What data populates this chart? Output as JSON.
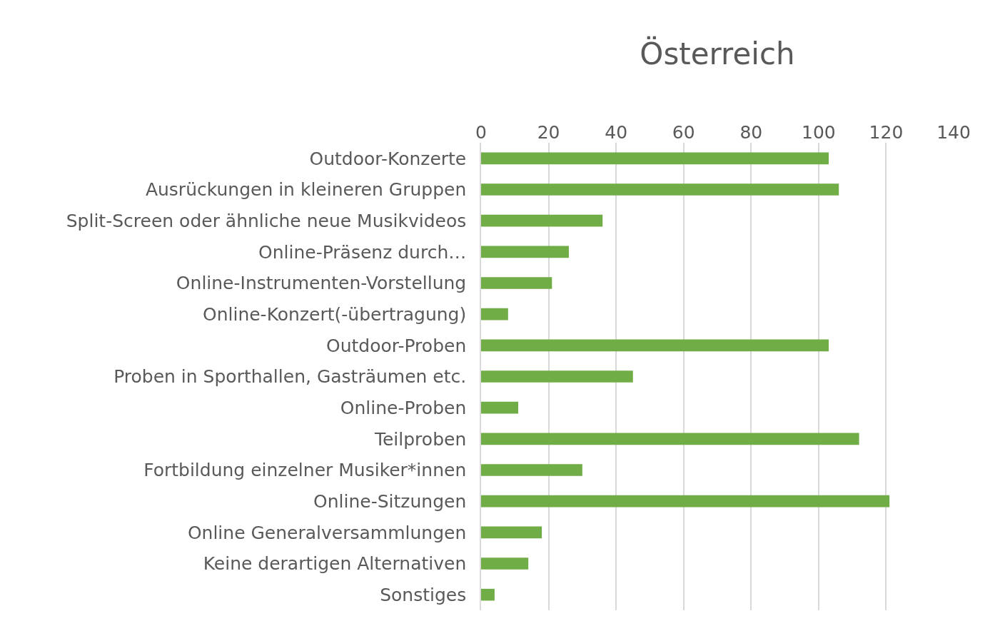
{
  "chart_data": {
    "type": "bar",
    "orientation": "horizontal",
    "title": "Österreich",
    "categories": [
      "Outdoor-Konzerte",
      "Ausrückungen in kleineren Gruppen",
      "Split-Screen oder ähnliche neue Musikvideos",
      "Online-Präsenz durch…",
      "Online-Instrumenten-Vorstellung",
      "Online-Konzert(-übertragung)",
      "Outdoor-Proben",
      "Proben in Sporthallen, Gasträumen etc.",
      "Online-Proben",
      "Teilproben",
      "Fortbildung einzelner Musiker*innen",
      "Online-Sitzungen",
      "Online Generalversammlungen",
      "Keine derartigen Alternativen",
      "Sonstiges"
    ],
    "values": [
      103,
      106,
      36,
      26,
      21,
      8,
      103,
      45,
      11,
      112,
      30,
      121,
      18,
      14,
      4
    ],
    "color": "#70ad47",
    "xlim": [
      0,
      140
    ],
    "xticks": [
      0,
      20,
      40,
      60,
      80,
      100,
      120,
      140
    ],
    "grid": "x",
    "legend": false
  }
}
